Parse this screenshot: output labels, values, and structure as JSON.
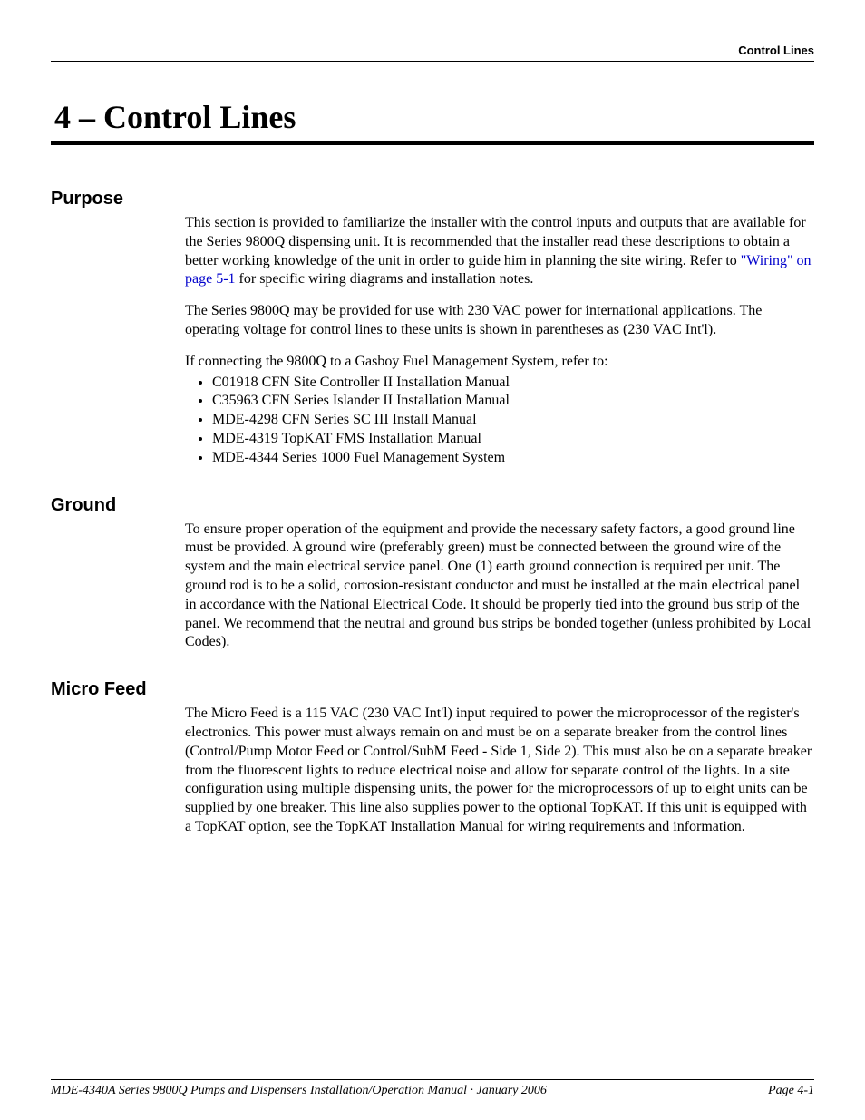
{
  "typography": {
    "body_family": "Times New Roman, Times, serif",
    "heading_family": "Arial, Helvetica, sans-serif",
    "chapter_title_size_pt": 27,
    "section_heading_size_pt": 15,
    "body_size_pt": 12,
    "footer_size_pt": 10.5,
    "link_color": "#0000cc",
    "text_color": "#000000",
    "background_color": "#ffffff"
  },
  "running_head": "Control Lines",
  "chapter_title": "4 – Control Lines",
  "sections": {
    "purpose": {
      "heading": "Purpose",
      "p1_before_link": "This section is provided to familiarize the installer with the control inputs and outputs that are available for the Series 9800Q dispensing unit. It is recommended that the installer read these descriptions to obtain a better working knowledge of the unit in order to guide him in planning the site wiring. Refer to ",
      "p1_link": "\"Wiring\" on page 5-1",
      "p1_after_link": " for specific wiring diagrams and installation notes.",
      "p2": "The Series 9800Q may be provided for use with 230 VAC power for international applications. The operating voltage for control lines to these units is shown in parentheses as (230 VAC Int'l).",
      "p3_intro": "If connecting the 9800Q to a Gasboy Fuel Management System, refer to:",
      "refs": [
        "C01918 CFN Site Controller II Installation Manual",
        "C35963 CFN Series Islander II Installation Manual",
        "MDE-4298 CFN Series SC III Install Manual",
        "MDE-4319 TopKAT FMS Installation Manual",
        "MDE-4344 Series 1000 Fuel Management System"
      ]
    },
    "ground": {
      "heading": "Ground",
      "p1": "To ensure proper operation of the equipment and provide the necessary safety factors, a good ground line must be provided. A ground wire (preferably green) must be connected between the ground wire of the system and the main electrical service panel. One (1) earth ground connection is required per unit. The ground rod is to be a solid, corrosion-resistant conductor and must be installed at the main electrical panel in accordance with the National Electrical Code. It should be properly tied into the ground bus strip of the panel. We recommend that the neutral and ground bus strips be bonded together (unless prohibited by Local Codes)."
    },
    "micro_feed": {
      "heading": "Micro Feed",
      "p1": "The Micro Feed is a 115 VAC (230 VAC Int'l) input required to power the microprocessor of the register's electronics. This power must always remain on and must be on a separate breaker from the control lines (Control/Pump Motor Feed or Control/SubM Feed - Side 1, Side 2). This must also be on a separate breaker from the fluorescent lights to reduce electrical noise and allow for separate control of the lights. In a site configuration using multiple dispensing units, the power for the microprocessors of up to eight units can be supplied by one breaker. This line also supplies power to the optional TopKAT. If this unit is equipped with a TopKAT option, see the TopKAT Installation Manual for wiring requirements and information."
    }
  },
  "footer": {
    "left": "MDE-4340A Series 9800Q Pumps and Dispensers Installation/Operation Manual · January 2006",
    "right": "Page 4-1"
  }
}
